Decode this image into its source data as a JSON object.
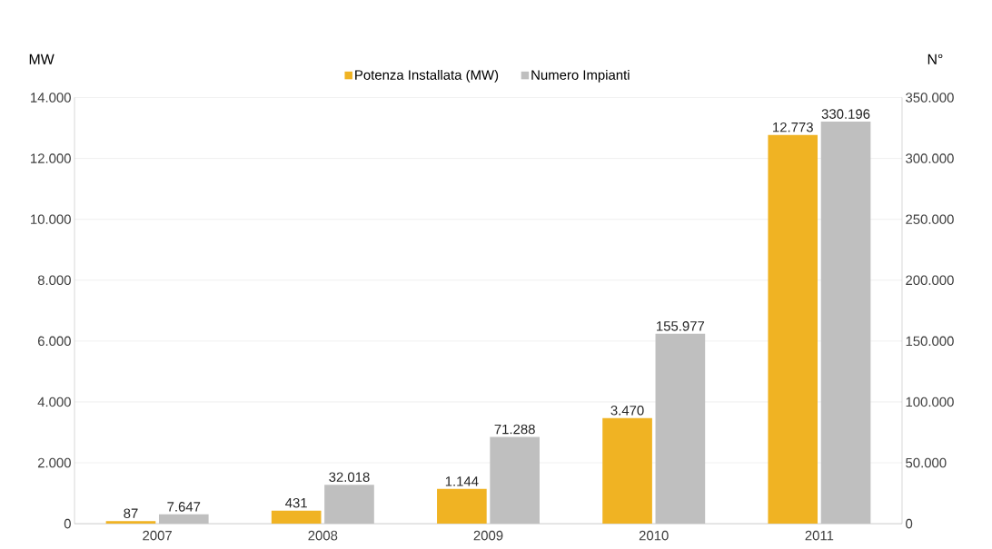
{
  "chart_data": {
    "type": "bar",
    "categories": [
      "2007",
      "2008",
      "2009",
      "2010",
      "2011"
    ],
    "series": [
      {
        "name": "Potenza Installata (MW)",
        "color": "#f0b323",
        "values": [
          87,
          431,
          1144,
          3470,
          12773
        ],
        "value_labels": [
          "87",
          "431",
          "1.144",
          "3.470",
          "12.773"
        ]
      },
      {
        "name": "Numero Impianti",
        "color": "#bfbfbf",
        "axis": "y2",
        "values": [
          7647,
          32018,
          71288,
          155977,
          330196
        ],
        "value_labels": [
          "7.647",
          "32.018",
          "71.288",
          "155.977",
          "330.196"
        ]
      }
    ],
    "ylabel": "MW",
    "y2label": "N°",
    "ylim": [
      0,
      14000
    ],
    "yticks": [
      0,
      {
        "value": 2000,
        "label": "2.000"
      },
      {
        "value": 4000,
        "label": "4.000"
      },
      {
        "value": 6000,
        "label": "6.000"
      },
      {
        "value": 8000,
        "label": "8.000"
      },
      {
        "value": 10000,
        "label": "10.000"
      },
      {
        "value": 12000,
        "label": "12.000"
      },
      {
        "value": 14000,
        "label": "14.000"
      }
    ],
    "y2lim": [
      0,
      350000
    ],
    "y2ticks": [
      0,
      {
        "value": 50000,
        "label": "50.000"
      },
      {
        "value": 100000,
        "label": "100.000"
      },
      {
        "value": 150000,
        "label": "150.000"
      },
      {
        "value": 200000,
        "label": "200.000"
      },
      {
        "value": 250000,
        "label": "250.000"
      },
      {
        "value": 300000,
        "label": "300.000"
      },
      {
        "value": 350000,
        "label": "350.000"
      }
    ],
    "grid": "y",
    "legend": "top"
  }
}
